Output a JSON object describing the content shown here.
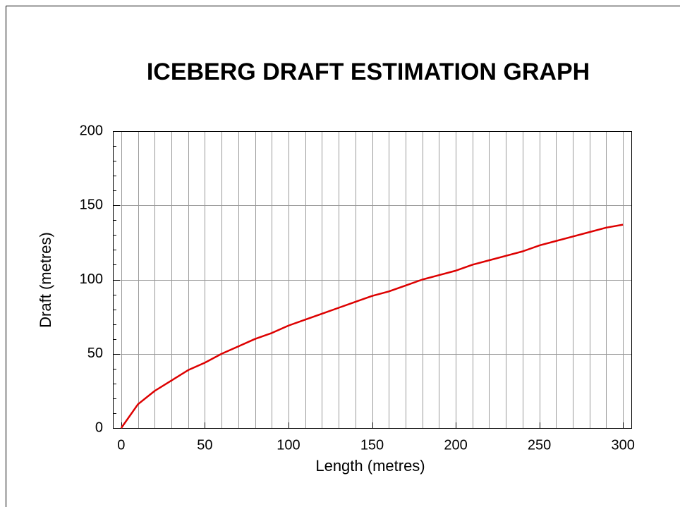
{
  "chart_data": {
    "type": "line",
    "title": "ICEBERG DRAFT ESTIMATION GRAPH",
    "xlabel": "Length (metres)",
    "ylabel": "Draft (metres)",
    "x": [
      0,
      10,
      20,
      30,
      40,
      50,
      60,
      70,
      80,
      90,
      100,
      110,
      120,
      130,
      140,
      150,
      160,
      170,
      180,
      190,
      200,
      210,
      220,
      230,
      240,
      250,
      260,
      270,
      280,
      290,
      300
    ],
    "series": [
      {
        "name": "Draft",
        "color": "#dd0000",
        "values": [
          0,
          16,
          25,
          32,
          39,
          44,
          50,
          55,
          60,
          64,
          69,
          73,
          77,
          81,
          85,
          89,
          92,
          96,
          100,
          103,
          106,
          110,
          113,
          116,
          119,
          123,
          126,
          129,
          132,
          135,
          137
        ]
      }
    ],
    "xlim": [
      -5,
      305
    ],
    "ylim": [
      0,
      200
    ],
    "xticks": [
      0,
      50,
      100,
      150,
      200,
      250,
      300
    ],
    "yticks": [
      0,
      50,
      100,
      150,
      200
    ],
    "xminorticks": [
      0,
      10,
      20,
      30,
      40,
      50,
      60,
      70,
      80,
      90,
      100,
      110,
      120,
      130,
      140,
      150,
      160,
      170,
      180,
      190,
      200,
      210,
      220,
      230,
      240,
      250,
      260,
      270,
      280,
      290,
      300
    ],
    "yminorticks": [
      0,
      10,
      20,
      30,
      40,
      50,
      60,
      70,
      80,
      90,
      100,
      110,
      120,
      130,
      140,
      150,
      160,
      170,
      180,
      190,
      200
    ],
    "grid": true
  }
}
